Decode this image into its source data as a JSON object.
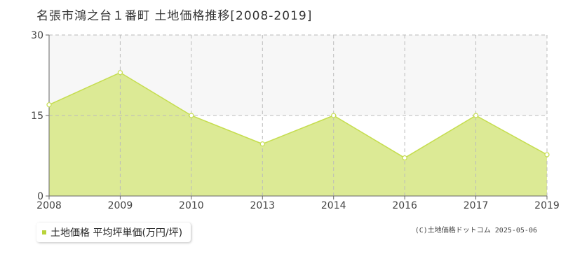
{
  "title": "名張市鴻之台１番町 土地価格推移[2008-2019]",
  "legend_label": "土地価格 平均坪単価(万円/坪)",
  "copyright": "(C)土地価格ドットコム 2025-05-06",
  "colors": {
    "fill": "#dcea95",
    "line": "#c5dd4f",
    "marker_fill": "#ffffff",
    "grid": "#bbbbbb",
    "band": "#f7f7f7",
    "legend_marker": "#b9d33b"
  },
  "chart_data": {
    "type": "area",
    "title": "名張市鴻之台１番町 土地価格推移[2008-2019]",
    "x": [
      "2008",
      "2009",
      "2010",
      "2013",
      "2014",
      "2016",
      "2017",
      "2019"
    ],
    "series": [
      {
        "name": "土地価格 平均坪単価(万円/坪)",
        "values": [
          17,
          23,
          15,
          9.7,
          15,
          7.1,
          15,
          7.7
        ]
      }
    ],
    "y_ticks": [
      "0",
      "15",
      "30"
    ],
    "ylim": [
      0,
      30
    ],
    "grid": true,
    "legend": "bottom-left"
  }
}
